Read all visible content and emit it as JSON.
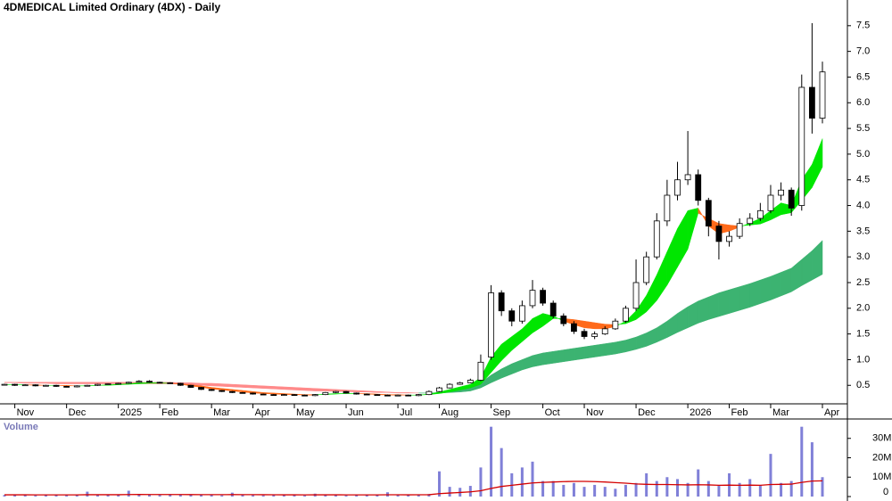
{
  "chart_data": [
    {
      "type": "candlestick",
      "title": "4DMEDICAL Limited Ordinary (4DX) - Daily",
      "categories": [
        null,
        "Nov",
        null,
        null,
        null,
        null,
        "Dec",
        null,
        null,
        null,
        null,
        "2025",
        null,
        null,
        null,
        "Feb",
        null,
        null,
        null,
        null,
        "Mar",
        null,
        null,
        null,
        "Apr",
        null,
        null,
        null,
        "May",
        null,
        null,
        null,
        null,
        "Jun",
        null,
        null,
        null,
        null,
        "Jul",
        null,
        null,
        null,
        "Aug",
        null,
        null,
        null,
        null,
        "Sep",
        null,
        null,
        null,
        null,
        "Oct",
        null,
        null,
        null,
        "Nov",
        null,
        null,
        null,
        null,
        "Dec",
        null,
        null,
        null,
        null,
        "2026",
        null,
        null,
        null,
        "Feb",
        null,
        null,
        null,
        "Mar",
        null,
        null,
        null,
        null,
        "Apr"
      ],
      "open": [
        0.51,
        0.52,
        0.5,
        0.51,
        0.49,
        0.5,
        0.48,
        0.47,
        0.49,
        0.5,
        0.52,
        0.53,
        0.54,
        0.56,
        0.58,
        0.56,
        0.55,
        0.54,
        0.5,
        0.46,
        0.42,
        0.4,
        0.38,
        0.36,
        0.35,
        0.33,
        0.32,
        0.31,
        0.32,
        0.31,
        0.3,
        0.32,
        0.36,
        0.38,
        0.35,
        0.33,
        0.32,
        0.31,
        0.3,
        0.31,
        0.3,
        0.32,
        0.38,
        0.45,
        0.52,
        0.55,
        0.6,
        1.05,
        2.3,
        1.95,
        1.75,
        2.05,
        2.35,
        2.1,
        1.85,
        1.7,
        1.55,
        1.45,
        1.5,
        1.6,
        1.75,
        2.0,
        2.5,
        3.0,
        3.7,
        4.2,
        4.5,
        4.6,
        4.1,
        3.6,
        3.3,
        3.4,
        3.65,
        3.75,
        3.9,
        4.2,
        4.3,
        4.0,
        6.3,
        5.7
      ],
      "high": [
        0.53,
        0.53,
        0.52,
        0.52,
        0.51,
        0.51,
        0.49,
        0.5,
        0.51,
        0.53,
        0.54,
        0.55,
        0.57,
        0.6,
        0.6,
        0.57,
        0.56,
        0.55,
        0.51,
        0.47,
        0.43,
        0.41,
        0.39,
        0.37,
        0.36,
        0.34,
        0.33,
        0.33,
        0.33,
        0.32,
        0.33,
        0.37,
        0.39,
        0.39,
        0.36,
        0.34,
        0.33,
        0.32,
        0.32,
        0.32,
        0.33,
        0.4,
        0.47,
        0.54,
        0.57,
        0.63,
        1.1,
        2.45,
        2.35,
        2.0,
        2.15,
        2.55,
        2.4,
        2.15,
        1.9,
        1.75,
        1.6,
        1.55,
        1.65,
        1.8,
        2.05,
        2.95,
        3.1,
        3.85,
        4.5,
        4.85,
        5.45,
        4.7,
        4.15,
        3.7,
        3.5,
        3.75,
        3.85,
        4.05,
        4.4,
        4.45,
        4.35,
        6.55,
        7.55,
        6.8
      ],
      "low": [
        0.5,
        0.49,
        0.49,
        0.48,
        0.48,
        0.47,
        0.46,
        0.46,
        0.48,
        0.49,
        0.51,
        0.52,
        0.53,
        0.55,
        0.55,
        0.54,
        0.53,
        0.49,
        0.45,
        0.41,
        0.39,
        0.37,
        0.35,
        0.34,
        0.32,
        0.31,
        0.3,
        0.3,
        0.3,
        0.29,
        0.29,
        0.31,
        0.35,
        0.34,
        0.32,
        0.31,
        0.3,
        0.29,
        0.29,
        0.29,
        0.29,
        0.31,
        0.37,
        0.44,
        0.51,
        0.54,
        0.58,
        1.0,
        1.85,
        1.65,
        1.7,
        2.0,
        2.05,
        1.8,
        1.65,
        1.5,
        1.4,
        1.4,
        1.48,
        1.58,
        1.72,
        1.95,
        2.45,
        2.95,
        3.6,
        4.1,
        4.4,
        4.0,
        3.4,
        2.95,
        3.2,
        3.35,
        3.6,
        3.7,
        3.85,
        4.1,
        3.8,
        3.9,
        5.4,
        5.6
      ],
      "close": [
        0.52,
        0.5,
        0.51,
        0.49,
        0.5,
        0.48,
        0.47,
        0.49,
        0.5,
        0.52,
        0.53,
        0.54,
        0.56,
        0.58,
        0.56,
        0.55,
        0.54,
        0.5,
        0.46,
        0.42,
        0.4,
        0.38,
        0.36,
        0.35,
        0.33,
        0.32,
        0.31,
        0.32,
        0.31,
        0.3,
        0.32,
        0.36,
        0.38,
        0.35,
        0.33,
        0.32,
        0.31,
        0.3,
        0.31,
        0.3,
        0.32,
        0.38,
        0.45,
        0.52,
        0.55,
        0.6,
        0.95,
        2.3,
        1.95,
        1.75,
        2.05,
        2.35,
        2.1,
        1.85,
        1.7,
        1.55,
        1.45,
        1.5,
        1.6,
        1.75,
        2.0,
        2.5,
        3.0,
        3.7,
        4.2,
        4.5,
        4.6,
        4.1,
        3.6,
        3.3,
        3.4,
        3.65,
        3.75,
        3.9,
        4.2,
        4.3,
        3.95,
        6.3,
        5.7,
        6.6
      ],
      "up_color": "#ffffff",
      "down_color": "#000000",
      "ribbons": [
        {
          "color_above": "#3cb371",
          "color_below": "#ff8a8a",
          "fast": [
            0.55,
            0.55,
            0.54,
            0.54,
            0.54,
            0.53,
            0.53,
            0.53,
            0.53,
            0.53,
            0.53,
            0.53,
            0.53,
            0.53,
            0.53,
            0.53,
            0.53,
            0.52,
            0.51,
            0.5,
            0.49,
            0.48,
            0.47,
            0.46,
            0.45,
            0.44,
            0.43,
            0.42,
            0.41,
            0.4,
            0.39,
            0.39,
            0.38,
            0.38,
            0.37,
            0.37,
            0.36,
            0.36,
            0.35,
            0.35,
            0.35,
            0.35,
            0.36,
            0.38,
            0.41,
            0.45,
            0.55,
            0.7,
            0.82,
            0.92,
            1.0,
            1.08,
            1.13,
            1.16,
            1.19,
            1.22,
            1.25,
            1.28,
            1.31,
            1.34,
            1.38,
            1.44,
            1.52,
            1.62,
            1.75,
            1.9,
            2.03,
            2.14,
            2.22,
            2.3,
            2.36,
            2.42,
            2.48,
            2.55,
            2.62,
            2.7,
            2.78,
            2.95,
            3.12,
            3.32
          ],
          "slow": [
            0.56,
            0.56,
            0.56,
            0.56,
            0.56,
            0.56,
            0.56,
            0.56,
            0.56,
            0.56,
            0.56,
            0.56,
            0.56,
            0.56,
            0.56,
            0.56,
            0.56,
            0.55,
            0.55,
            0.54,
            0.54,
            0.53,
            0.52,
            0.51,
            0.5,
            0.49,
            0.48,
            0.47,
            0.46,
            0.45,
            0.44,
            0.43,
            0.42,
            0.41,
            0.4,
            0.39,
            0.38,
            0.37,
            0.36,
            0.36,
            0.35,
            0.35,
            0.35,
            0.36,
            0.37,
            0.39,
            0.45,
            0.55,
            0.64,
            0.72,
            0.8,
            0.86,
            0.9,
            0.93,
            0.96,
            0.99,
            1.02,
            1.05,
            1.08,
            1.11,
            1.15,
            1.2,
            1.26,
            1.34,
            1.43,
            1.53,
            1.62,
            1.71,
            1.78,
            1.84,
            1.9,
            1.96,
            2.02,
            2.09,
            2.16,
            2.24,
            2.32,
            2.44,
            2.55,
            2.66
          ]
        },
        {
          "color_above": "#00e600",
          "color_below": "#ff6a1a",
          "fast": [
            0.51,
            0.51,
            0.51,
            0.5,
            0.5,
            0.5,
            0.49,
            0.49,
            0.49,
            0.5,
            0.51,
            0.52,
            0.53,
            0.55,
            0.55,
            0.55,
            0.54,
            0.52,
            0.49,
            0.46,
            0.43,
            0.41,
            0.39,
            0.37,
            0.35,
            0.34,
            0.33,
            0.32,
            0.32,
            0.31,
            0.31,
            0.33,
            0.34,
            0.34,
            0.34,
            0.33,
            0.32,
            0.31,
            0.31,
            0.31,
            0.31,
            0.33,
            0.37,
            0.42,
            0.47,
            0.52,
            0.65,
            1.05,
            1.3,
            1.45,
            1.6,
            1.8,
            1.9,
            1.85,
            1.75,
            1.68,
            1.62,
            1.6,
            1.6,
            1.64,
            1.75,
            1.95,
            2.25,
            2.65,
            3.1,
            3.55,
            3.9,
            3.95,
            3.6,
            3.45,
            3.5,
            3.58,
            3.66,
            3.75,
            3.9,
            4.05,
            4.0,
            4.5,
            4.8,
            5.3
          ],
          "slow": [
            0.51,
            0.51,
            0.51,
            0.51,
            0.5,
            0.5,
            0.5,
            0.49,
            0.49,
            0.5,
            0.5,
            0.51,
            0.52,
            0.53,
            0.54,
            0.54,
            0.54,
            0.53,
            0.51,
            0.49,
            0.46,
            0.44,
            0.42,
            0.4,
            0.38,
            0.36,
            0.35,
            0.34,
            0.33,
            0.32,
            0.32,
            0.32,
            0.33,
            0.34,
            0.34,
            0.34,
            0.33,
            0.32,
            0.32,
            0.31,
            0.31,
            0.32,
            0.34,
            0.37,
            0.41,
            0.45,
            0.52,
            0.75,
            0.98,
            1.18,
            1.35,
            1.52,
            1.65,
            1.8,
            1.8,
            1.78,
            1.75,
            1.72,
            1.69,
            1.68,
            1.7,
            1.78,
            1.93,
            2.15,
            2.45,
            2.8,
            3.15,
            3.85,
            3.75,
            3.65,
            3.62,
            3.6,
            3.62,
            3.64,
            3.72,
            3.82,
            3.86,
            4.1,
            4.35,
            4.75
          ]
        }
      ],
      "ylim": [
        0.14,
        8.0
      ],
      "yticks": [
        0.5,
        {
          "value": 1,
          "label": "1.0"
        },
        1.5,
        {
          "value": 2,
          "label": "2.0"
        },
        2.5,
        {
          "value": 3,
          "label": "3.0"
        },
        3.5,
        {
          "value": 4,
          "label": "4.0"
        },
        4.5,
        {
          "value": 5,
          "label": "5.0"
        },
        5.5,
        {
          "value": 6,
          "label": "6.0"
        },
        6.5,
        {
          "value": 7,
          "label": "7.0"
        },
        7.5
      ]
    },
    {
      "type": "bar",
      "title": "Volume",
      "color": "#8080d8",
      "ma_color": "#d40000",
      "values": [
        800000,
        700000,
        900000,
        600000,
        750000,
        1000000,
        650000,
        700000,
        2500000,
        800000,
        900000,
        700000,
        3000000,
        1100000,
        900000,
        800000,
        1200000,
        900000,
        700000,
        800000,
        1000000,
        600000,
        2000000,
        700000,
        650000,
        600000,
        800000,
        700000,
        900000,
        600000,
        1500000,
        700000,
        1000000,
        600000,
        700000,
        800000,
        900000,
        2200000,
        700000,
        800000,
        1000000,
        1300000,
        13000000,
        5000000,
        4500000,
        5500000,
        15000000,
        36000000,
        25000000,
        12000000,
        15000000,
        18000000,
        8000000,
        8000000,
        6000000,
        7000000,
        5000000,
        6000000,
        5000000,
        4000000,
        6000000,
        7000000,
        12000000,
        8000000,
        10000000,
        9000000,
        7000000,
        14000000,
        8000000,
        6000000,
        12000000,
        7000000,
        9000000,
        6000000,
        22000000,
        7000000,
        8000000,
        36000000,
        28000000,
        10000000
      ],
      "ma": [
        900000,
        900000,
        880000,
        870000,
        860000,
        870000,
        860000,
        850000,
        950000,
        950000,
        950000,
        940000,
        1050000,
        1060000,
        1050000,
        1040000,
        1050000,
        1030000,
        1000000,
        980000,
        980000,
        960000,
        1000000,
        990000,
        970000,
        940000,
        920000,
        900000,
        890000,
        870000,
        900000,
        880000,
        890000,
        870000,
        860000,
        860000,
        860000,
        920000,
        910000,
        900000,
        920000,
        950000,
        1500000,
        1800000,
        2100000,
        2400000,
        3000000,
        4200000,
        5200000,
        5800000,
        6400000,
        7000000,
        7300000,
        7500000,
        7700000,
        7800000,
        7800000,
        7700000,
        7500000,
        7200000,
        6900000,
        6500000,
        6300000,
        6200000,
        6200000,
        6100000,
        6000000,
        6100000,
        6000000,
        5800000,
        5900000,
        5800000,
        5900000,
        5800000,
        6200000,
        6300000,
        6400000,
        7300000,
        8000000,
        8100000
      ],
      "ylim": [
        0,
        40000000
      ],
      "yticks": [
        0,
        {
          "value": 10000000,
          "label": "10M"
        },
        {
          "value": 20000000,
          "label": "20M"
        },
        {
          "value": 30000000,
          "label": "30M"
        }
      ]
    }
  ]
}
